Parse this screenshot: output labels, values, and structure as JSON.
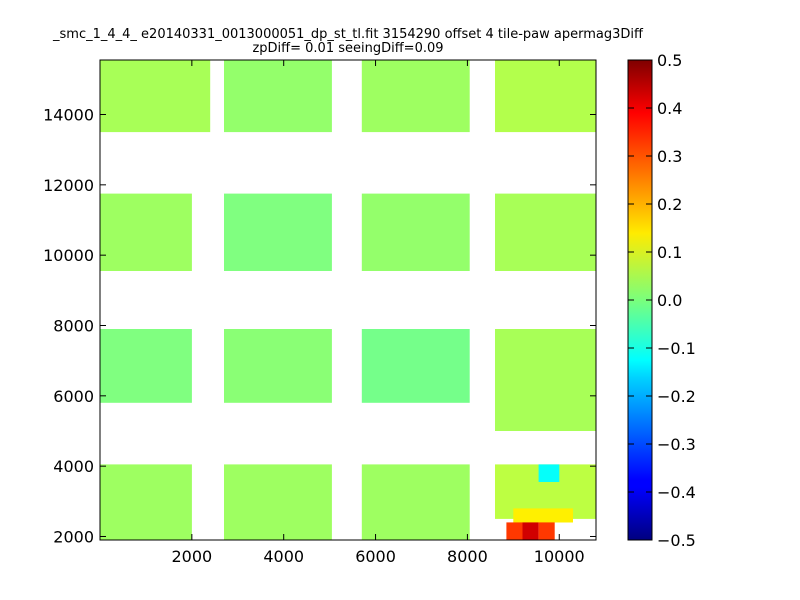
{
  "chart_data": {
    "type": "heatmap",
    "title": "_smc_1_4_4_ e20140331_0013000051_dp_st_tl.fit 3154290 offset 4 tile-paw apermag3Diff",
    "subtitle": "zpDiff= 0.01 seeingDiff=0.09",
    "xlabel": "",
    "ylabel": "",
    "xlim": [
      0,
      10800
    ],
    "ylim": [
      1900,
      15550
    ],
    "xticks": [
      "2000",
      "4000",
      "6000",
      "8000",
      "10000"
    ],
    "xtick_values": [
      2000,
      4000,
      6000,
      8000,
      10000
    ],
    "yticks": [
      "2000",
      "4000",
      "6000",
      "8000",
      "10000",
      "12000",
      "14000"
    ],
    "ytick_values": [
      2000,
      4000,
      6000,
      8000,
      10000,
      12000,
      14000
    ],
    "colorbar": {
      "colormap": "jet",
      "range": [
        -0.5,
        0.5
      ],
      "ticks": [
        "0.5",
        "0.4",
        "0.3",
        "0.2",
        "0.1",
        "0.0",
        "−0.1",
        "−0.2",
        "−0.3",
        "−0.4",
        "−0.5"
      ],
      "tick_values": [
        0.5,
        0.4,
        0.3,
        0.2,
        0.1,
        0.0,
        -0.1,
        -0.2,
        -0.3,
        -0.4,
        -0.5
      ]
    },
    "cells": [
      {
        "x": [
          0,
          2400
        ],
        "y": [
          13500,
          15550
        ],
        "value": 0.04
      },
      {
        "x": [
          2700,
          5050
        ],
        "y": [
          13500,
          15550
        ],
        "value": 0.02
      },
      {
        "x": [
          5700,
          8050
        ],
        "y": [
          13500,
          15550
        ],
        "value": 0.03
      },
      {
        "x": [
          8600,
          10800
        ],
        "y": [
          13500,
          15550
        ],
        "value": 0.05
      },
      {
        "x": [
          0,
          2000
        ],
        "y": [
          9550,
          11750
        ],
        "value": 0.03
      },
      {
        "x": [
          2700,
          5050
        ],
        "y": [
          9550,
          11750
        ],
        "value": 0.0
      },
      {
        "x": [
          5700,
          8050
        ],
        "y": [
          9550,
          11750
        ],
        "value": 0.02
      },
      {
        "x": [
          8600,
          10800
        ],
        "y": [
          9550,
          11750
        ],
        "value": 0.04
      },
      {
        "x": [
          0,
          2000
        ],
        "y": [
          5800,
          7900
        ],
        "value": 0.0
      },
      {
        "x": [
          2700,
          5050
        ],
        "y": [
          5800,
          7900
        ],
        "value": 0.01
      },
      {
        "x": [
          5700,
          8050
        ],
        "y": [
          5800,
          7900
        ],
        "value": -0.01
      },
      {
        "x": [
          8600,
          10800
        ],
        "y": [
          5000,
          7900
        ],
        "value": 0.04
      },
      {
        "x": [
          0,
          2000
        ],
        "y": [
          1900,
          4050
        ],
        "value": 0.03
      },
      {
        "x": [
          2700,
          5050
        ],
        "y": [
          1900,
          4050
        ],
        "value": 0.03
      },
      {
        "x": [
          5700,
          8050
        ],
        "y": [
          1900,
          4050
        ],
        "value": 0.03
      },
      {
        "x": [
          8600,
          10800
        ],
        "y": [
          2500,
          4050
        ],
        "value": 0.06
      },
      {
        "x": [
          9000,
          10300
        ],
        "y": [
          2400,
          2800
        ],
        "value": 0.14
      },
      {
        "x": [
          9550,
          10000
        ],
        "y": [
          3550,
          4050
        ],
        "value": -0.12
      },
      {
        "x": [
          8850,
          9200
        ],
        "y": [
          1900,
          2400
        ],
        "value": 0.32
      },
      {
        "x": [
          9200,
          9550
        ],
        "y": [
          1900,
          2400
        ],
        "value": 0.42
      },
      {
        "x": [
          9550,
          9900
        ],
        "y": [
          1900,
          2400
        ],
        "value": 0.32
      }
    ]
  }
}
